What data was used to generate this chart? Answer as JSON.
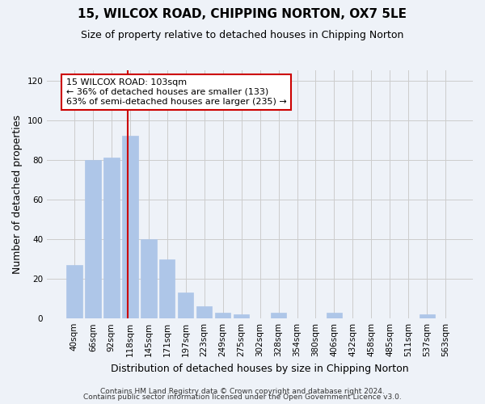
{
  "title": "15, WILCOX ROAD, CHIPPING NORTON, OX7 5LE",
  "subtitle": "Size of property relative to detached houses in Chipping Norton",
  "xlabel": "Distribution of detached houses by size in Chipping Norton",
  "ylabel": "Number of detached properties",
  "bar_labels": [
    "40sqm",
    "66sqm",
    "92sqm",
    "118sqm",
    "145sqm",
    "171sqm",
    "197sqm",
    "223sqm",
    "249sqm",
    "275sqm",
    "302sqm",
    "328sqm",
    "354sqm",
    "380sqm",
    "406sqm",
    "432sqm",
    "458sqm",
    "485sqm",
    "511sqm",
    "537sqm",
    "563sqm"
  ],
  "bar_values": [
    27,
    80,
    81,
    92,
    40,
    30,
    13,
    6,
    3,
    2,
    0,
    3,
    0,
    0,
    3,
    0,
    0,
    0,
    0,
    2,
    0
  ],
  "bar_color": "#aec6e8",
  "vline_x": 2.9,
  "vline_color": "#cc0000",
  "annotation_text": "15 WILCOX ROAD: 103sqm\n← 36% of detached houses are smaller (133)\n63% of semi-detached houses are larger (235) →",
  "annotation_box_color": "#ffffff",
  "annotation_box_edge": "#cc0000",
  "ylim": [
    0,
    125
  ],
  "yticks": [
    0,
    20,
    40,
    60,
    80,
    100,
    120
  ],
  "grid_color": "#cccccc",
  "bg_color": "#eef2f8",
  "footer_line1": "Contains HM Land Registry data © Crown copyright and database right 2024.",
  "footer_line2": "Contains public sector information licensed under the Open Government Licence v3.0.",
  "title_fontsize": 11,
  "subtitle_fontsize": 9,
  "tick_fontsize": 7.5,
  "ylabel_fontsize": 9,
  "xlabel_fontsize": 9,
  "footer_fontsize": 6.5,
  "annotation_fontsize": 8
}
